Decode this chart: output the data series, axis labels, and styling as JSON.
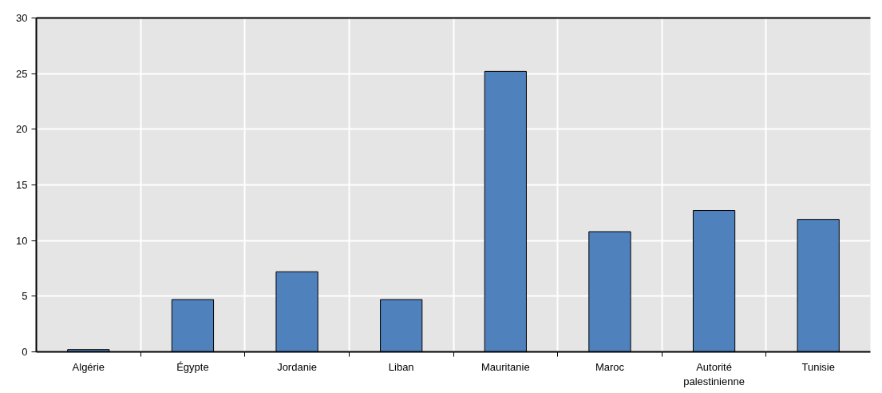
{
  "chart_data": {
    "type": "bar",
    "categories": [
      "Algérie",
      "Égypte",
      "Jordanie",
      "Liban",
      "Mauritanie",
      "Maroc",
      "Autorité palestinienne",
      "Tunisie"
    ],
    "values": [
      0.2,
      4.7,
      7.2,
      4.7,
      25.2,
      10.8,
      12.7,
      11.9
    ],
    "color": "#4f81bd",
    "ylim": [
      0,
      30
    ],
    "yticks": [
      0,
      5,
      10,
      15,
      20,
      25,
      30
    ],
    "grid": true
  }
}
